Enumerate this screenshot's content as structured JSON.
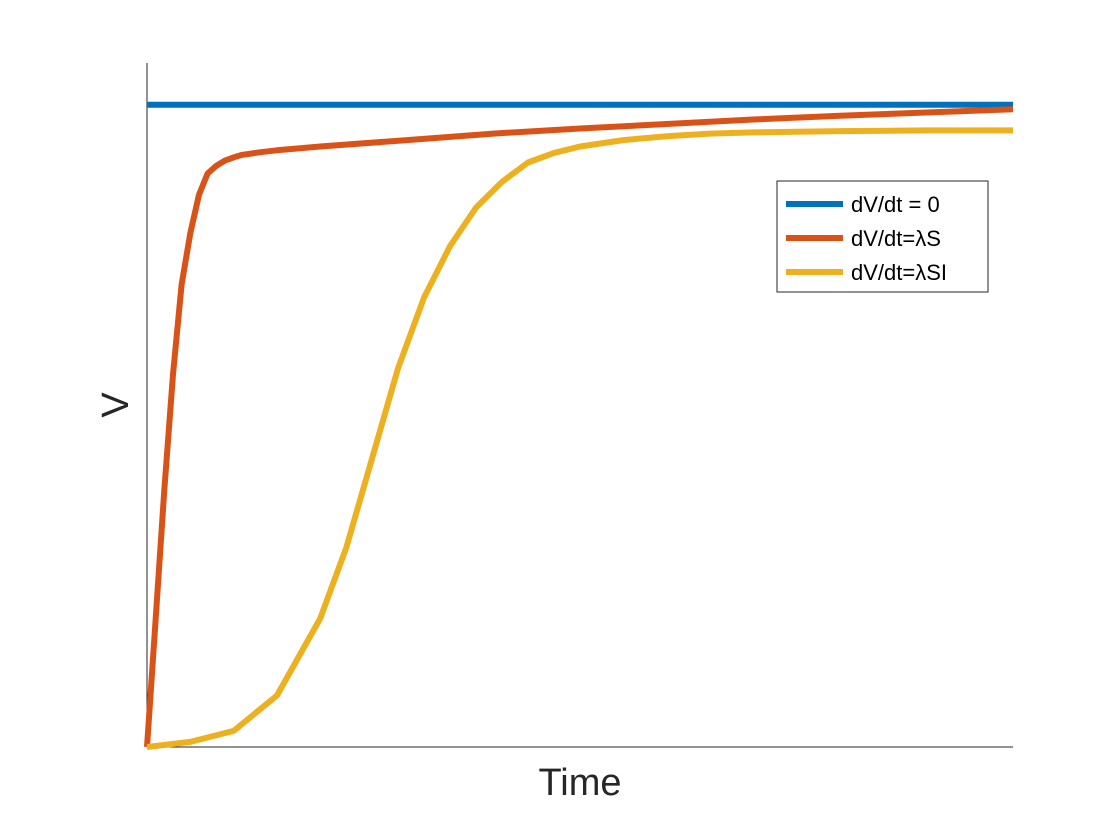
{
  "chart_data": {
    "type": "line",
    "title": "",
    "xlabel": "Time",
    "ylabel": "V",
    "xlim": [
      0,
      1
    ],
    "ylim": [
      0,
      1
    ],
    "xticks": [],
    "yticks": [],
    "grid": false,
    "legend_position": "top-right",
    "series": [
      {
        "name": "dV/dt = 0",
        "color": "#0072BD",
        "x": [
          0,
          1
        ],
        "y": [
          1.0,
          1.0
        ]
      },
      {
        "name": "dV/dt=λS",
        "color": "#D95319",
        "x": [
          0,
          0.01,
          0.02,
          0.03,
          0.04,
          0.05,
          0.06,
          0.07,
          0.08,
          0.09,
          0.1,
          0.11,
          0.12,
          0.13,
          0.15,
          0.2,
          0.3,
          0.4,
          0.5,
          0.6,
          0.7,
          0.8,
          0.9,
          1.0
        ],
        "y": [
          0,
          0.2,
          0.4,
          0.58,
          0.72,
          0.8,
          0.86,
          0.893,
          0.905,
          0.913,
          0.918,
          0.922,
          0.924,
          0.926,
          0.929,
          0.935,
          0.945,
          0.955,
          0.963,
          0.97,
          0.977,
          0.983,
          0.988,
          0.993
        ]
      },
      {
        "name": "dV/dt=λSI",
        "color": "#EDB120",
        "x": [
          0,
          0.05,
          0.1,
          0.15,
          0.2,
          0.23,
          0.26,
          0.29,
          0.32,
          0.35,
          0.38,
          0.41,
          0.44,
          0.47,
          0.5,
          0.55,
          0.6,
          0.65,
          0.7,
          0.8,
          0.9,
          1.0
        ],
        "y": [
          0,
          0.008,
          0.025,
          0.08,
          0.2,
          0.31,
          0.45,
          0.59,
          0.7,
          0.78,
          0.84,
          0.88,
          0.91,
          0.925,
          0.935,
          0.945,
          0.951,
          0.955,
          0.957,
          0.959,
          0.96,
          0.96
        ]
      }
    ]
  }
}
